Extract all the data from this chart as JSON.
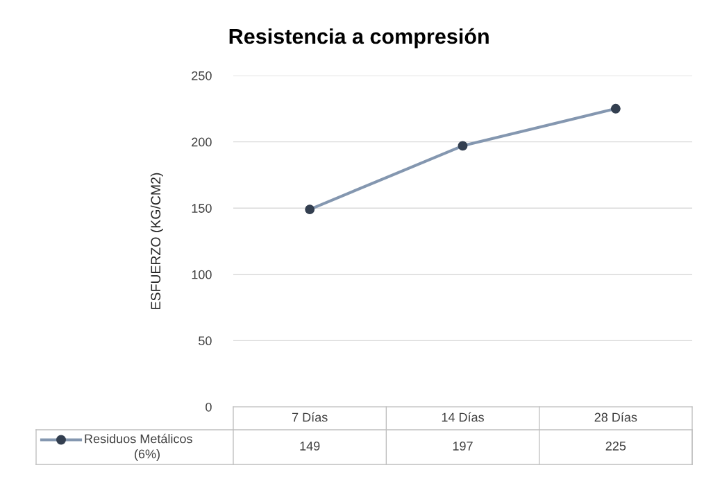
{
  "chart_data": {
    "type": "line",
    "title": "Resistencia a compresión",
    "ylabel": "ESFUERZO (KG/CM2)",
    "categories": [
      "7 Días",
      "14 Días",
      "28 Días"
    ],
    "series": [
      {
        "name": "Residuos Metálicos (6%)",
        "color": "#8497b0",
        "values": [
          149,
          197,
          225
        ]
      }
    ],
    "ylim": [
      0,
      250
    ],
    "yticks": [
      0,
      50,
      100,
      150,
      200,
      250
    ],
    "grid": "y",
    "legend": "bottom",
    "marker": "circle",
    "line_style": "solid",
    "data_labels": true
  }
}
